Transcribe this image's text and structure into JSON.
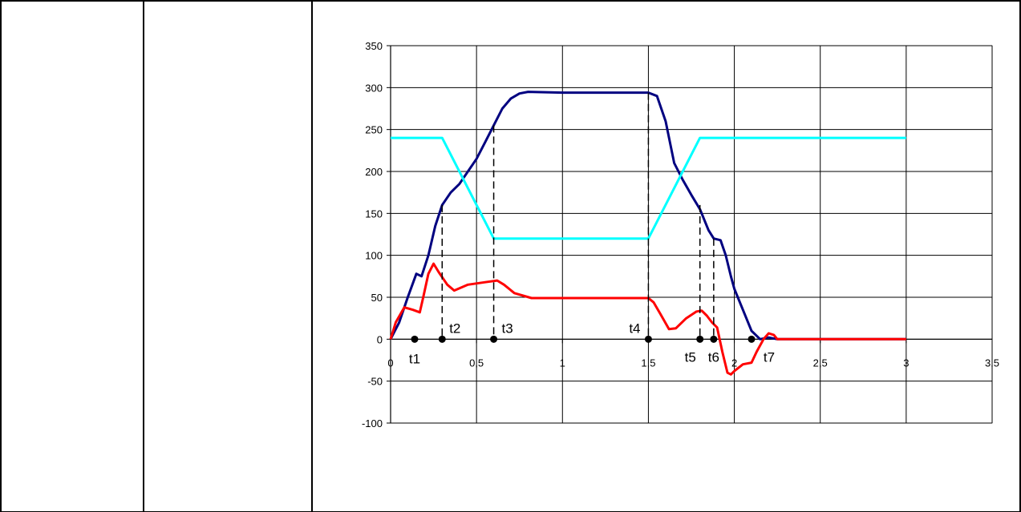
{
  "chart_data": {
    "type": "line",
    "title": "",
    "xlabel": "",
    "ylabel": "",
    "xlim": [
      0,
      3.5
    ],
    "ylim": [
      -100,
      350
    ],
    "grid": true,
    "legend": "none",
    "x_ticks": [
      "0",
      "0,5",
      "1",
      "1,5",
      "2",
      "2,5",
      "3",
      "3,5"
    ],
    "y_ticks": [
      "-100",
      "-50",
      "0",
      "50",
      "100",
      "150",
      "200",
      "250",
      "300",
      "350"
    ],
    "series": [
      {
        "color": "#000080",
        "points": [
          [
            0,
            0
          ],
          [
            0.05,
            20
          ],
          [
            0.1,
            50
          ],
          [
            0.15,
            78
          ],
          [
            0.18,
            75
          ],
          [
            0.22,
            100
          ],
          [
            0.26,
            135
          ],
          [
            0.3,
            160
          ],
          [
            0.35,
            175
          ],
          [
            0.4,
            185
          ],
          [
            0.45,
            200
          ],
          [
            0.5,
            215
          ],
          [
            0.55,
            235
          ],
          [
            0.6,
            255
          ],
          [
            0.65,
            275
          ],
          [
            0.7,
            287
          ],
          [
            0.75,
            293
          ],
          [
            0.8,
            295
          ],
          [
            1.0,
            294
          ],
          [
            1.2,
            294
          ],
          [
            1.45,
            294
          ],
          [
            1.5,
            294
          ],
          [
            1.55,
            290
          ],
          [
            1.6,
            260
          ],
          [
            1.65,
            210
          ],
          [
            1.7,
            190
          ],
          [
            1.75,
            172
          ],
          [
            1.8,
            155
          ],
          [
            1.85,
            130
          ],
          [
            1.88,
            120
          ],
          [
            1.92,
            118
          ],
          [
            1.95,
            100
          ],
          [
            1.98,
            75
          ],
          [
            2.0,
            60
          ],
          [
            2.05,
            35
          ],
          [
            2.1,
            10
          ],
          [
            2.15,
            0
          ],
          [
            2.2,
            2
          ],
          [
            2.25,
            0
          ],
          [
            3.0,
            0
          ]
        ]
      },
      {
        "color": "#00FFFF",
        "points": [
          [
            0,
            240
          ],
          [
            0.3,
            240
          ],
          [
            0.6,
            120
          ],
          [
            1.5,
            120
          ],
          [
            1.8,
            240
          ],
          [
            3.0,
            240
          ]
        ]
      },
      {
        "color": "#FF0000",
        "points": [
          [
            0,
            0
          ],
          [
            0.03,
            20
          ],
          [
            0.08,
            38
          ],
          [
            0.13,
            35
          ],
          [
            0.17,
            32
          ],
          [
            0.19,
            50
          ],
          [
            0.22,
            78
          ],
          [
            0.25,
            90
          ],
          [
            0.28,
            80
          ],
          [
            0.33,
            65
          ],
          [
            0.37,
            58
          ],
          [
            0.45,
            65
          ],
          [
            0.55,
            68
          ],
          [
            0.62,
            70
          ],
          [
            0.66,
            65
          ],
          [
            0.72,
            55
          ],
          [
            0.82,
            49
          ],
          [
            1.0,
            49
          ],
          [
            1.2,
            49
          ],
          [
            1.45,
            49
          ],
          [
            1.5,
            49
          ],
          [
            1.53,
            44
          ],
          [
            1.57,
            30
          ],
          [
            1.62,
            12
          ],
          [
            1.66,
            13
          ],
          [
            1.72,
            25
          ],
          [
            1.78,
            33
          ],
          [
            1.81,
            34
          ],
          [
            1.84,
            28
          ],
          [
            1.87,
            20
          ],
          [
            1.9,
            14
          ],
          [
            1.93,
            -15
          ],
          [
            1.96,
            -40
          ],
          [
            1.98,
            -42
          ],
          [
            2.0,
            -38
          ],
          [
            2.05,
            -30
          ],
          [
            2.1,
            -28
          ],
          [
            2.13,
            -15
          ],
          [
            2.17,
            0
          ],
          [
            2.2,
            7
          ],
          [
            2.23,
            5
          ],
          [
            2.25,
            0
          ],
          [
            2.3,
            0
          ],
          [
            3.0,
            0
          ]
        ]
      }
    ],
    "events": [
      {
        "label": "t1",
        "x": 0.14,
        "y_top": 0
      },
      {
        "label": "t2",
        "x": 0.3,
        "y_top": 160
      },
      {
        "label": "t3",
        "x": 0.6,
        "y_top": 255
      },
      {
        "label": "t4",
        "x": 1.5,
        "y_top": 294
      },
      {
        "label": "t5",
        "x": 1.8,
        "y_top": 160
      },
      {
        "label": "t6",
        "x": 1.88,
        "y_top": 120
      },
      {
        "label": "t7",
        "x": 2.1,
        "y_top": 0
      }
    ]
  }
}
